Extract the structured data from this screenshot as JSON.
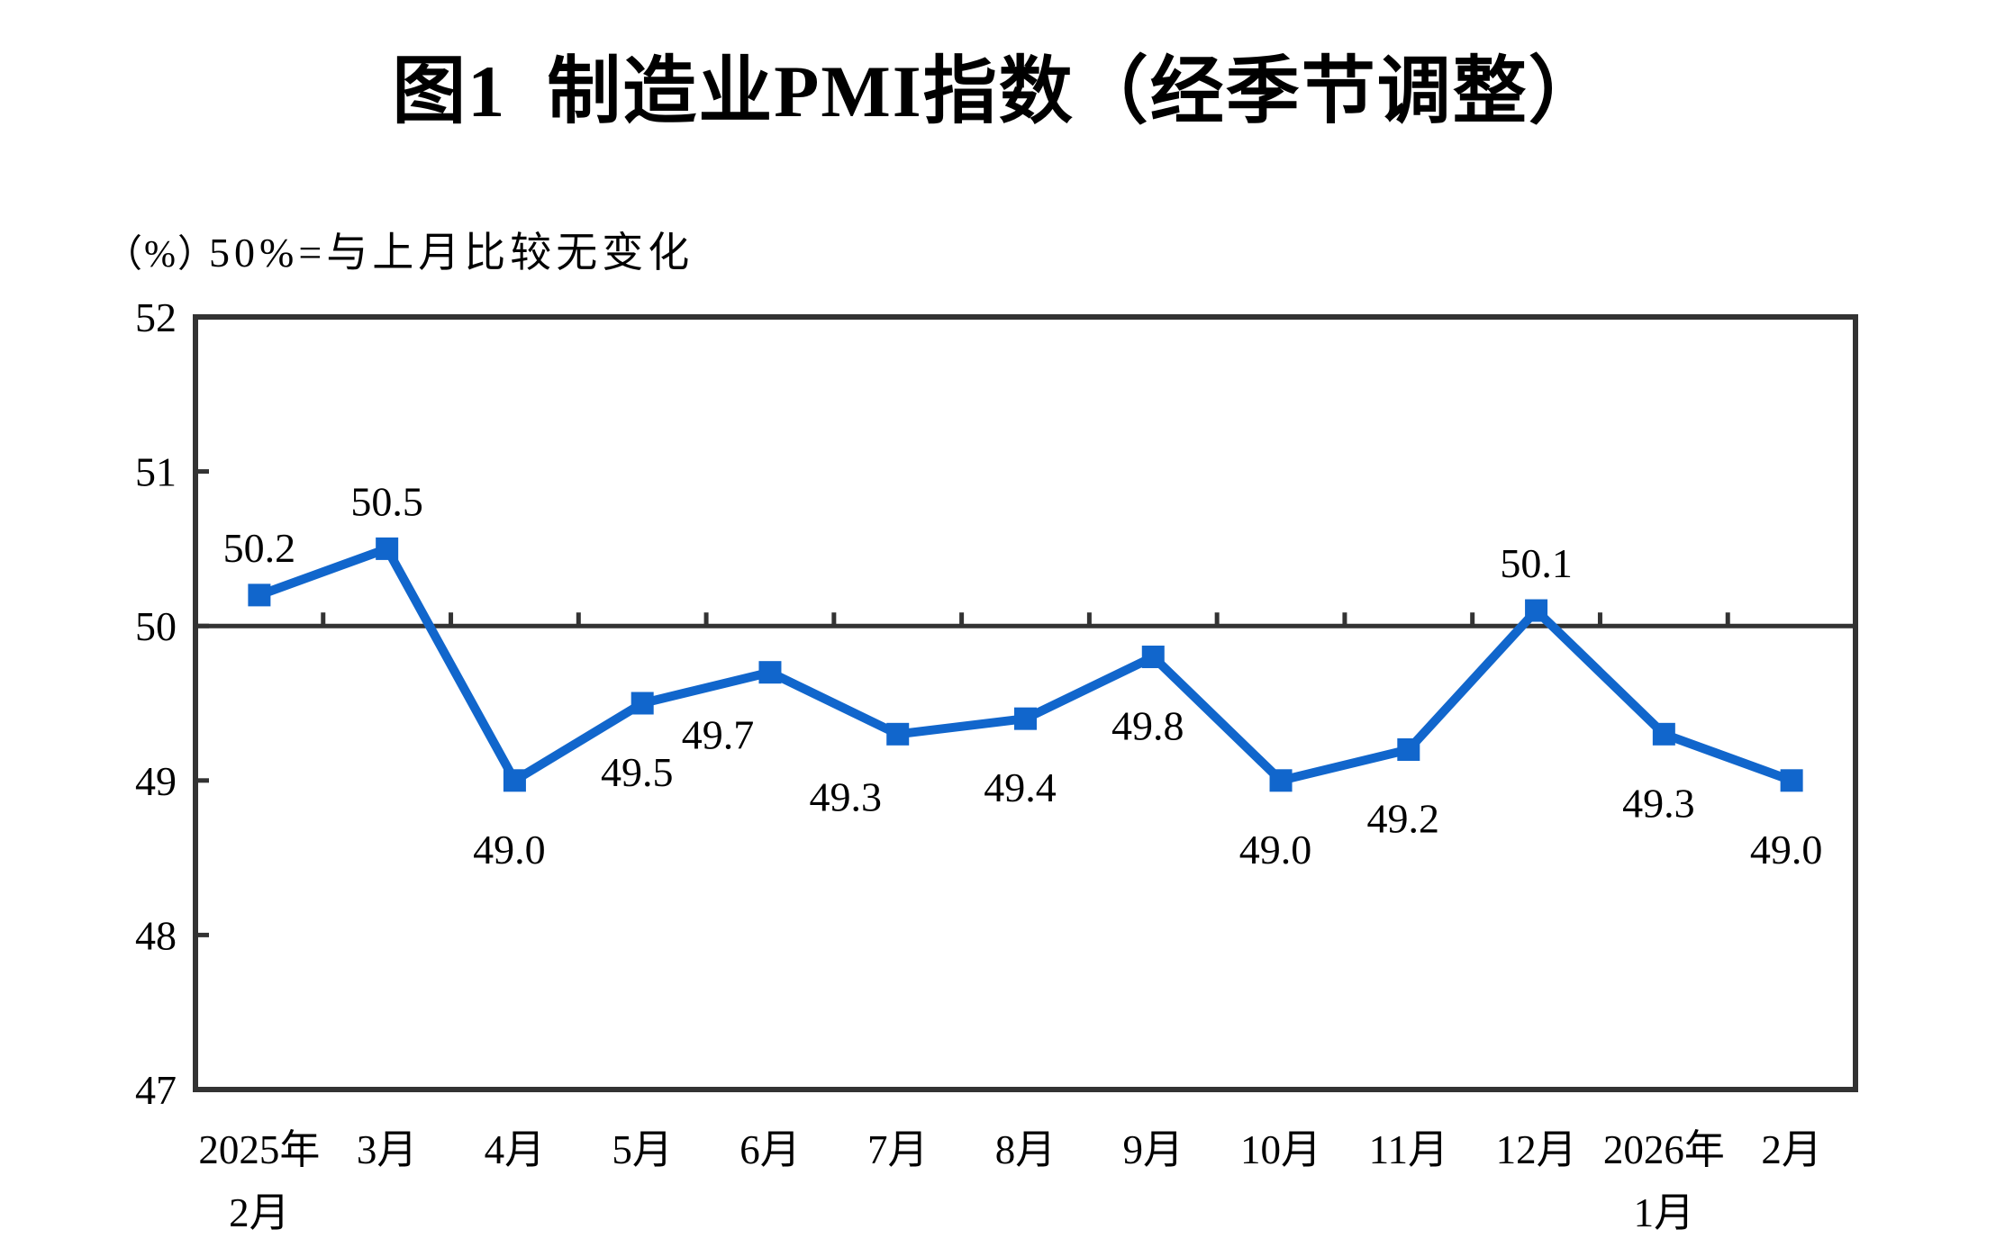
{
  "chart_data": {
    "type": "line",
    "title": "图1  制造业PMI指数（经季节调整）",
    "unit_label": "（%）",
    "annotation": "50%=与上月比较无变化",
    "categories": [
      {
        "lines": [
          "2025年",
          "2月"
        ]
      },
      {
        "lines": [
          "3月"
        ]
      },
      {
        "lines": [
          "4月"
        ]
      },
      {
        "lines": [
          "5月"
        ]
      },
      {
        "lines": [
          "6月"
        ]
      },
      {
        "lines": [
          "7月"
        ]
      },
      {
        "lines": [
          "8月"
        ]
      },
      {
        "lines": [
          "9月"
        ]
      },
      {
        "lines": [
          "10月"
        ]
      },
      {
        "lines": [
          "11月"
        ]
      },
      {
        "lines": [
          "12月"
        ]
      },
      {
        "lines": [
          "2026年",
          "1月"
        ]
      },
      {
        "lines": [
          "2月"
        ]
      }
    ],
    "series": [
      {
        "values": [
          50.2,
          50.5,
          49.0,
          49.5,
          49.7,
          49.3,
          49.4,
          49.8,
          49.0,
          49.2,
          50.1,
          49.3,
          49.0
        ],
        "label_positions": [
          "above",
          "above",
          "below",
          "below",
          "below-left",
          "below-left",
          "below",
          "below",
          "below",
          "below",
          "above",
          "below",
          "below"
        ]
      }
    ],
    "ylim": [
      47,
      52
    ],
    "yticks": [
      47,
      48,
      49,
      50,
      51,
      52
    ],
    "reference_line": 50,
    "grid": false,
    "legend": "none",
    "marker": "square",
    "colors": {
      "line": "#1166CC",
      "axis": "#333333",
      "text": "#000000"
    }
  }
}
